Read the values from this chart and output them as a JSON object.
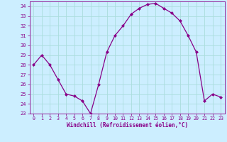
{
  "x": [
    0,
    1,
    2,
    3,
    4,
    5,
    6,
    7,
    8,
    9,
    10,
    11,
    12,
    13,
    14,
    15,
    16,
    17,
    18,
    19,
    20,
    21,
    22,
    23
  ],
  "y": [
    28,
    29,
    28,
    26.5,
    25,
    24.8,
    24.3,
    23,
    26,
    29.3,
    31,
    32,
    33.2,
    33.8,
    34.2,
    34.3,
    33.8,
    33.3,
    32.5,
    31,
    29.3,
    24.3,
    25,
    24.7
  ],
  "line_color": "#880088",
  "marker": "D",
  "marker_size": 2.0,
  "bg_color": "#cceeff",
  "grid_color": "#aadddd",
  "xlabel": "Windchill (Refroidissement éolien,°C)",
  "xlabel_color": "#880088",
  "tick_color": "#880088",
  "ylim": [
    23,
    34.5
  ],
  "xlim": [
    -0.5,
    23.5
  ],
  "yticks": [
    23,
    24,
    25,
    26,
    27,
    28,
    29,
    30,
    31,
    32,
    33,
    34
  ],
  "xticks": [
    0,
    1,
    2,
    3,
    4,
    5,
    6,
    7,
    8,
    9,
    10,
    11,
    12,
    13,
    14,
    15,
    16,
    17,
    18,
    19,
    20,
    21,
    22,
    23
  ]
}
